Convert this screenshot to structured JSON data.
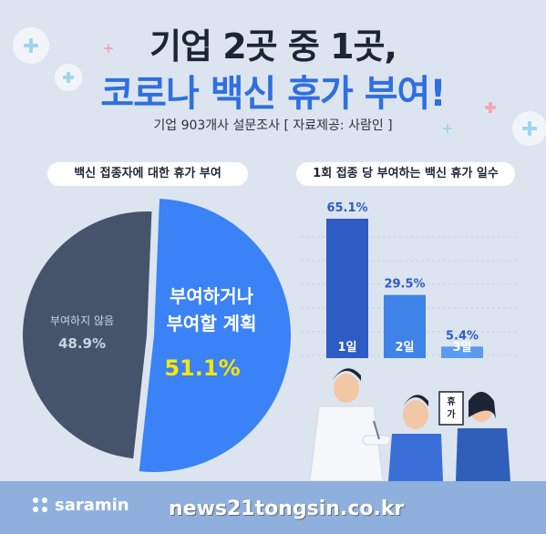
{
  "header": {
    "title_line1": "기업 2곳 중 1곳,",
    "title_line2": "코로나 백신 휴가 부여!",
    "subtitle": "기업 903개사 설문조사 [ 자료제공: 사람인 ]"
  },
  "chart_data": [
    {
      "type": "pie",
      "title": "백신 접종자에 대한 휴가 부여",
      "slices": [
        {
          "label_lines": [
            "부여하거나",
            "부여할 계획"
          ],
          "value": 51.1,
          "value_label": "51.1%",
          "color": "#3b82f6"
        },
        {
          "label_lines": [
            "부여하지 않음"
          ],
          "value": 48.9,
          "value_label": "48.9%",
          "color": "#46546b"
        }
      ]
    },
    {
      "type": "bar",
      "title": "1회 접종 당 부여하는 백신 휴가 일수",
      "categories": [
        "1일",
        "2일",
        "3일"
      ],
      "values": [
        65.1,
        29.5,
        5.4
      ],
      "value_labels": [
        "65.1%",
        "29.5%",
        "5.4%"
      ],
      "colors": [
        "#2d5cc4",
        "#3f82e8",
        "#5a9bef"
      ],
      "ylim": [
        0,
        70
      ]
    }
  ],
  "illustration": {
    "sign_text": "휴가"
  },
  "footer": {
    "logo": "saramin",
    "watermark": "news21tongsin.co.kr"
  }
}
